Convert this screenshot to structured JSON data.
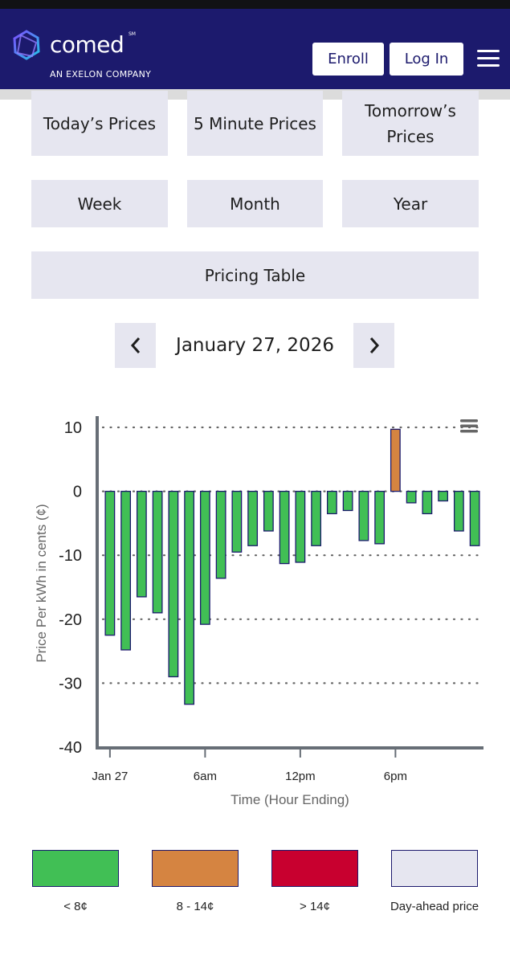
{
  "header": {
    "brand": "comed",
    "brand_mark": "SM",
    "tagline": "AN EXELON COMPANY",
    "enroll_label": "Enroll",
    "login_label": "Log In"
  },
  "nav": {
    "todays_prices": "Today’s Prices",
    "five_minute_prices": "5 Minute Prices",
    "tomorrows_prices_line1": "Tomorrow’s",
    "tomorrows_prices_line2": "Prices",
    "week": "Week",
    "month": "Month",
    "year": "Year",
    "pricing_table": "Pricing Table"
  },
  "date_nav": {
    "date": "January 27, 2026"
  },
  "colors": {
    "header_bg": "#1c1a6d",
    "low": "#41bf55",
    "mid": "#d58441",
    "high": "#c8002f",
    "day_ahead": "#e6e6f0"
  },
  "chart_data": {
    "type": "bar",
    "title": "",
    "xlabel": "Time (Hour Ending)",
    "ylabel": "Price Per kWh in cents (¢)",
    "ylim": [
      -40,
      10
    ],
    "yticks": [
      10,
      0,
      -10,
      -20,
      -30,
      -40
    ],
    "x_tick_labels": [
      "Jan 27",
      "6am",
      "12pm",
      "6pm"
    ],
    "grid": "dotted horizontal",
    "categories": [
      1,
      2,
      3,
      4,
      5,
      6,
      7,
      8,
      9,
      10,
      11,
      12,
      13,
      14,
      15,
      16,
      17,
      18,
      19,
      20,
      21,
      22,
      23,
      24
    ],
    "values": [
      -22.5,
      -24.8,
      -16.5,
      -19.0,
      -29.0,
      -33.3,
      -20.8,
      -13.6,
      -9.5,
      -8.5,
      -6.2,
      -11.3,
      -11.1,
      -8.5,
      -3.5,
      -3.0,
      -7.7,
      -8.2,
      9.7,
      -1.8,
      -3.5,
      -1.5,
      -6.2,
      -8.5
    ],
    "series_colors": [
      "low",
      "low",
      "low",
      "low",
      "low",
      "low",
      "low",
      "low",
      "low",
      "low",
      "low",
      "low",
      "low",
      "low",
      "low",
      "low",
      "low",
      "low",
      "mid",
      "low",
      "low",
      "low",
      "low",
      "low"
    ]
  },
  "legend": [
    {
      "label": "< 8¢",
      "color": "#41bf55"
    },
    {
      "label": "8 - 14¢",
      "color": "#d58441"
    },
    {
      "label": "> 14¢",
      "color": "#c8002f"
    },
    {
      "label": "Day-ahead price",
      "color": "#e6e6f0"
    }
  ]
}
